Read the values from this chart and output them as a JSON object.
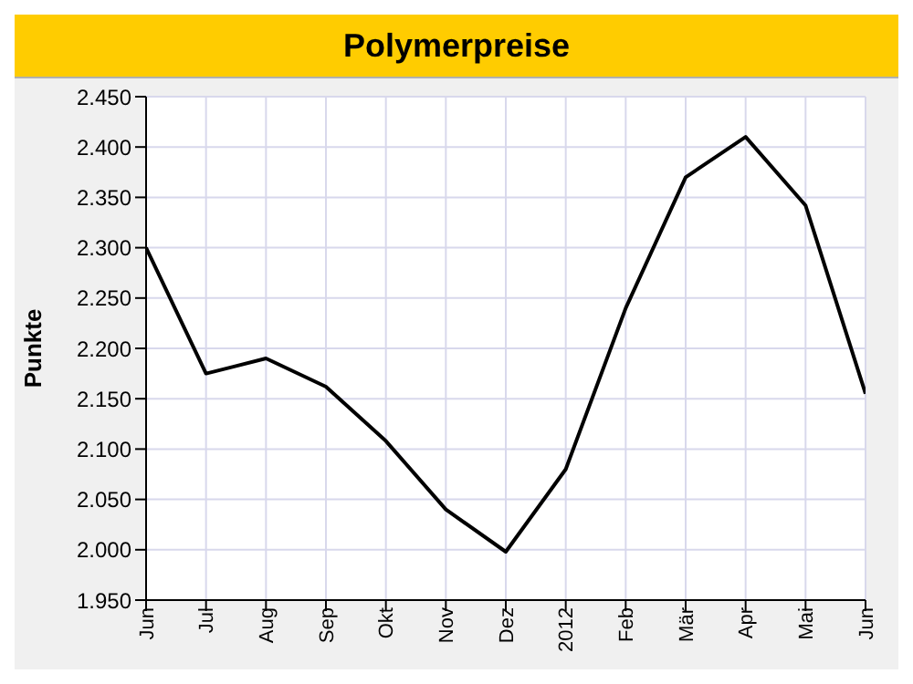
{
  "chart_data": {
    "type": "line",
    "title": "Polymerpreise",
    "ylabel": "Punkte",
    "categories": [
      "Jun",
      "Jul",
      "Aug",
      "Sep",
      "Okt",
      "Nov",
      "Dez",
      "2012",
      "Feb",
      "Mär",
      "Apr",
      "Mai",
      "Jun"
    ],
    "series": [
      {
        "color": "#000000",
        "values": [
          2300,
          2175,
          2190,
          2162,
          2108,
          2040,
          1998,
          2080,
          2240,
          2370,
          2410,
          2342,
          2155
        ]
      }
    ],
    "ylim": [
      1950,
      2450
    ],
    "yticks": [
      {
        "value": 1950,
        "label": "1.950"
      },
      {
        "value": 2000,
        "label": "2.000"
      },
      {
        "value": 2050,
        "label": "2.050"
      },
      {
        "value": 2100,
        "label": "2.100"
      },
      {
        "value": 2150,
        "label": "2.150"
      },
      {
        "value": 2200,
        "label": "2.200"
      },
      {
        "value": 2250,
        "label": "2.250"
      },
      {
        "value": 2300,
        "label": "2.300"
      },
      {
        "value": 2350,
        "label": "2.350"
      },
      {
        "value": 2400,
        "label": "2.400"
      },
      {
        "value": 2450,
        "label": "2.450"
      }
    ],
    "grid": true,
    "marker": "none",
    "line_style": "solid"
  }
}
